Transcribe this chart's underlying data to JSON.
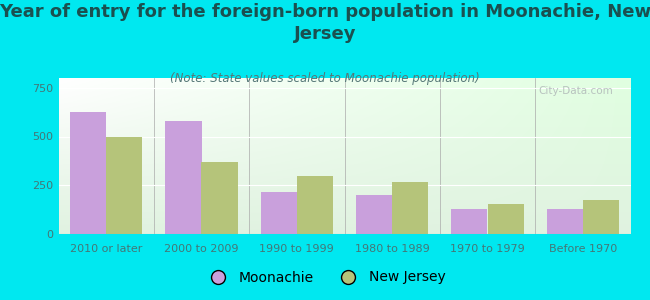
{
  "title": "Year of entry for the foreign-born population in Moonachie, New\nJersey",
  "subtitle": "(Note: State values scaled to Moonachie population)",
  "categories": [
    "2010 or later",
    "2000 to 2009",
    "1990 to 1999",
    "1980 to 1989",
    "1970 to 1979",
    "Before 1970"
  ],
  "moonachie_values": [
    625,
    580,
    215,
    200,
    130,
    130
  ],
  "nj_values": [
    500,
    370,
    300,
    265,
    155,
    175
  ],
  "moonachie_color": "#c9a0dc",
  "nj_color": "#b5c47a",
  "background_color": "#00e8f0",
  "plot_bg": "#e8f2e0",
  "ylim": [
    0,
    800
  ],
  "yticks": [
    0,
    250,
    500,
    750
  ],
  "bar_width": 0.38,
  "title_fontsize": 13,
  "subtitle_fontsize": 8.5,
  "tick_fontsize": 8,
  "legend_fontsize": 10,
  "title_color": "#1a5050",
  "subtitle_color": "#557777",
  "tick_color": "#447777",
  "watermark": "City-Data.com"
}
